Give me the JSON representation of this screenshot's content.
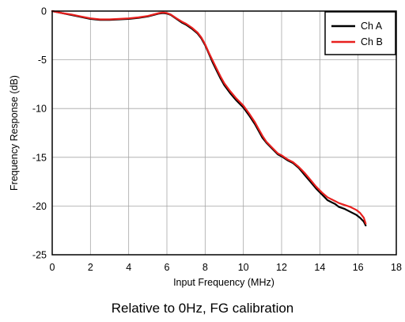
{
  "chart_data": {
    "type": "line",
    "xlabel": "Input Frequency (MHz)",
    "ylabel": "Frequency Response (dB)",
    "xlim": [
      0,
      18
    ],
    "ylim": [
      -25,
      0
    ],
    "xticks": [
      "0",
      "2",
      "4",
      "6",
      "8",
      "10",
      "12",
      "14",
      "16",
      "18"
    ],
    "yticks": [
      "0",
      "-5",
      "-10",
      "-15",
      "-20",
      "-25"
    ],
    "grid": true,
    "legend_position": "top-right",
    "colors": {
      "Ch A": "#000000",
      "Ch B": "#e8201e"
    },
    "series": [
      {
        "name": "Ch A",
        "x": [
          0,
          0.5,
          1,
          1.5,
          2,
          2.5,
          3,
          3.5,
          4,
          4.5,
          5,
          5.3,
          5.6,
          5.8,
          6.0,
          6.2,
          6.5,
          6.8,
          7.0,
          7.3,
          7.6,
          7.8,
          8.0,
          8.2,
          8.4,
          8.6,
          8.8,
          9.0,
          9.3,
          9.6,
          10.0,
          10.3,
          10.6,
          10.8,
          11.0,
          11.2,
          11.5,
          11.8,
          12.0,
          12.3,
          12.6,
          12.9,
          13.2,
          13.5,
          13.8,
          14.1,
          14.4,
          14.6,
          14.8,
          15.0,
          15.3,
          15.6,
          15.9,
          16.1,
          16.3,
          16.4
        ],
        "y": [
          0,
          -0.2,
          -0.4,
          -0.6,
          -0.8,
          -0.9,
          -0.9,
          -0.85,
          -0.8,
          -0.7,
          -0.55,
          -0.4,
          -0.25,
          -0.2,
          -0.25,
          -0.4,
          -0.8,
          -1.2,
          -1.4,
          -1.8,
          -2.3,
          -2.8,
          -3.5,
          -4.4,
          -5.3,
          -6.1,
          -6.9,
          -7.6,
          -8.4,
          -9.1,
          -9.9,
          -10.7,
          -11.6,
          -12.3,
          -13.0,
          -13.5,
          -14.1,
          -14.7,
          -14.9,
          -15.3,
          -15.6,
          -16.1,
          -16.8,
          -17.5,
          -18.2,
          -18.8,
          -19.4,
          -19.6,
          -19.8,
          -20.1,
          -20.3,
          -20.6,
          -20.9,
          -21.2,
          -21.6,
          -22.0
        ]
      },
      {
        "name": "Ch B",
        "x": [
          0,
          0.5,
          1,
          1.5,
          2,
          2.5,
          3,
          3.5,
          4,
          4.5,
          5,
          5.3,
          5.6,
          5.8,
          6.0,
          6.2,
          6.5,
          6.8,
          7.0,
          7.3,
          7.6,
          7.8,
          8.0,
          8.2,
          8.4,
          8.6,
          8.8,
          9.0,
          9.3,
          9.6,
          10.0,
          10.3,
          10.6,
          10.8,
          11.0,
          11.2,
          11.5,
          11.8,
          12.0,
          12.3,
          12.6,
          12.9,
          13.2,
          13.5,
          13.8,
          14.1,
          14.4,
          14.6,
          14.8,
          15.0,
          15.3,
          15.6,
          15.9,
          16.1,
          16.3,
          16.4
        ],
        "y": [
          0,
          -0.2,
          -0.35,
          -0.55,
          -0.75,
          -0.85,
          -0.85,
          -0.8,
          -0.75,
          -0.65,
          -0.5,
          -0.35,
          -0.2,
          -0.15,
          -0.2,
          -0.35,
          -0.75,
          -1.1,
          -1.3,
          -1.7,
          -2.2,
          -2.7,
          -3.4,
          -4.3,
          -5.1,
          -5.9,
          -6.7,
          -7.4,
          -8.2,
          -8.9,
          -9.7,
          -10.5,
          -11.4,
          -12.1,
          -12.8,
          -13.4,
          -14.0,
          -14.6,
          -14.8,
          -15.2,
          -15.5,
          -16.0,
          -16.6,
          -17.3,
          -18.0,
          -18.6,
          -19.1,
          -19.3,
          -19.5,
          -19.7,
          -19.9,
          -20.1,
          -20.4,
          -20.7,
          -21.2,
          -21.8
        ]
      }
    ]
  },
  "caption": "Relative to 0Hz, FG calibration"
}
